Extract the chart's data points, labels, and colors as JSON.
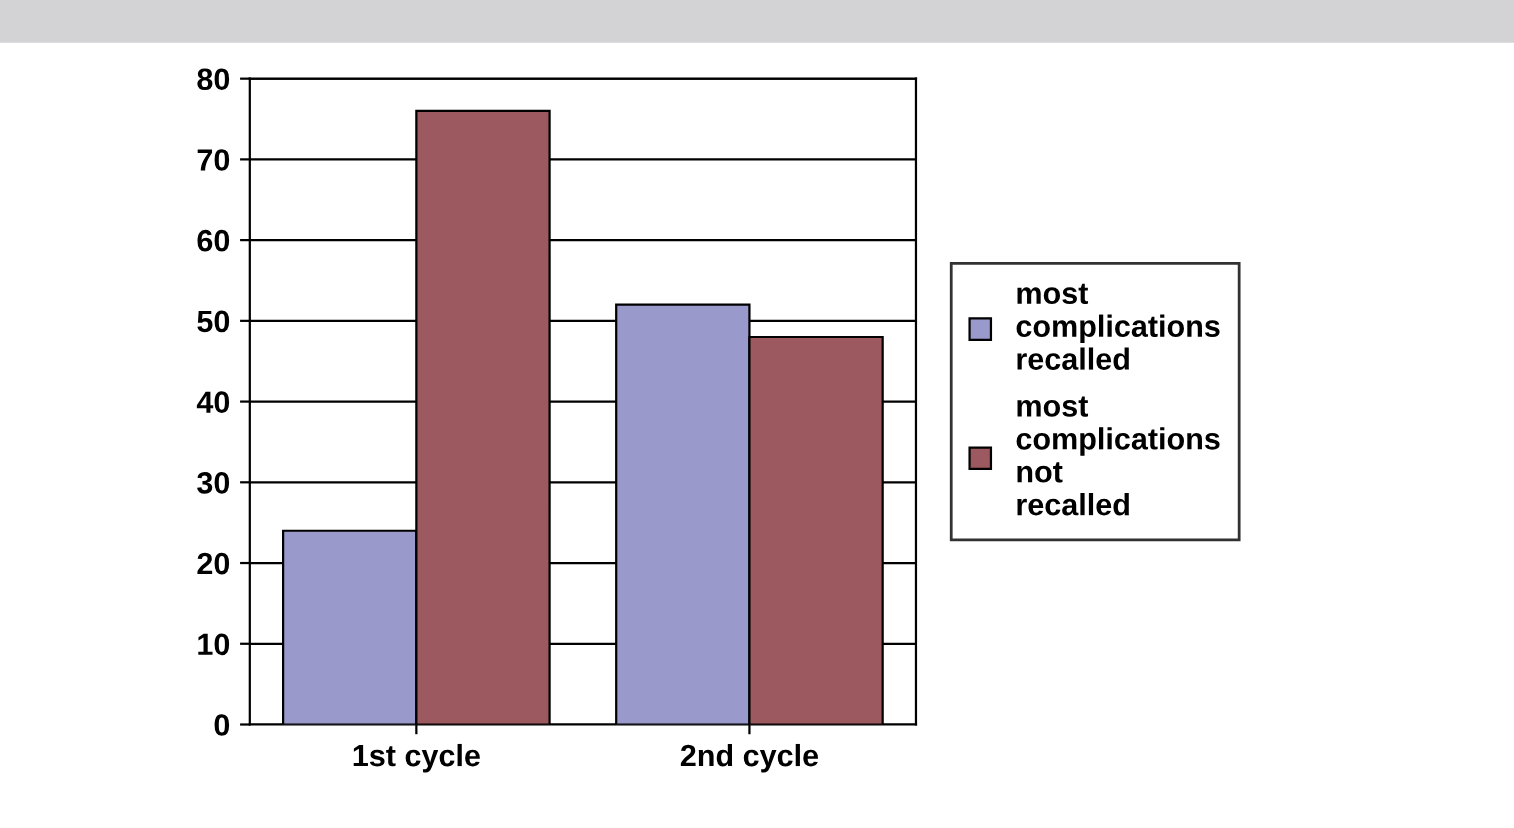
{
  "chart_data": {
    "type": "bar",
    "categories": [
      "1st cycle",
      "2nd cycle"
    ],
    "series": [
      {
        "name": "most complications recalled",
        "color": "#9999cc",
        "values": [
          24,
          52
        ]
      },
      {
        "name": "most complications not recalled",
        "color": "#9c5a60",
        "values": [
          76,
          48
        ]
      }
    ],
    "ylim": [
      0,
      80
    ],
    "yticks": [
      0,
      10,
      20,
      30,
      40,
      50,
      60,
      70,
      80
    ],
    "grid": "y",
    "legend": "right"
  }
}
